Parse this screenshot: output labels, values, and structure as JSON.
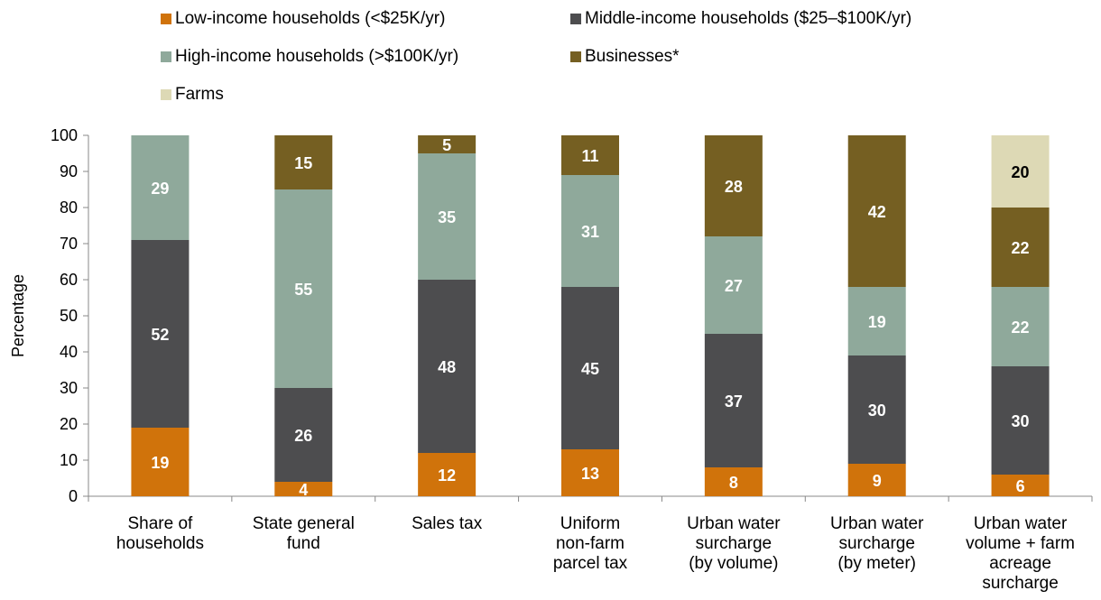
{
  "chart_data": {
    "type": "bar",
    "stacked": true,
    "title": "",
    "xlabel": "",
    "ylabel": "Percentage",
    "ylim": [
      0,
      100
    ],
    "yticks": [
      0,
      10,
      20,
      30,
      40,
      50,
      60,
      70,
      80,
      90,
      100
    ],
    "grid": false,
    "legend_position": "top",
    "categories": [
      [
        "Share of",
        "households"
      ],
      [
        "State general",
        "fund"
      ],
      [
        "Sales tax"
      ],
      [
        "Uniform",
        "non-farm",
        "parcel tax"
      ],
      [
        "Urban water",
        "surcharge",
        "(by volume)"
      ],
      [
        "Urban water",
        "surcharge",
        "(by meter)"
      ],
      [
        "Urban water",
        "volume + farm",
        "acreage",
        "surcharge"
      ]
    ],
    "series": [
      {
        "name": "Low-income households (<$25K/yr)",
        "color": "#d0730b",
        "label_color": "#ffffff",
        "values": [
          19,
          4,
          12,
          13,
          8,
          9,
          6
        ]
      },
      {
        "name": "Middle-income households ($25–$100K/yr)",
        "color": "#4d4d4f",
        "label_color": "#ffffff",
        "values": [
          52,
          26,
          48,
          45,
          37,
          30,
          30
        ]
      },
      {
        "name": "High-income households (>$100K/yr)",
        "color": "#8fa99b",
        "label_color": "#ffffff",
        "values": [
          29,
          55,
          35,
          31,
          27,
          19,
          22
        ]
      },
      {
        "name": "Businesses*",
        "color": "#755f22",
        "label_color": "#ffffff",
        "values": [
          0,
          15,
          5,
          11,
          28,
          42,
          22
        ]
      },
      {
        "name": "Farms",
        "color": "#ddd9b5",
        "label_color": "#000000",
        "values": [
          0,
          0,
          0,
          0,
          0,
          0,
          20
        ]
      }
    ],
    "display_values": [
      [
        19,
        4,
        12,
        13,
        8,
        9,
        6
      ],
      [
        52,
        26,
        48,
        45,
        37,
        30,
        30
      ],
      [
        29,
        55,
        35,
        31,
        27,
        19,
        22
      ],
      [
        null,
        15,
        5,
        11,
        28,
        42,
        22
      ],
      [
        null,
        null,
        null,
        null,
        null,
        null,
        20
      ]
    ]
  }
}
